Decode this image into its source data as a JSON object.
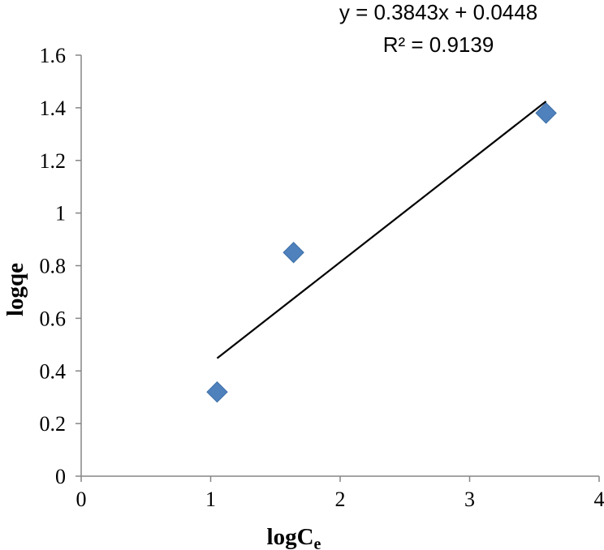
{
  "chart_data": {
    "type": "scatter",
    "xlabel": "logC",
    "xlabel_subscript": "e",
    "ylabel": "logqe",
    "xlim": [
      0,
      4
    ],
    "ylim": [
      0,
      1.6
    ],
    "x_ticks": [
      "0",
      "1",
      "2",
      "3",
      "4"
    ],
    "y_ticks": [
      "0",
      "0.2",
      "0.4",
      "0.6",
      "0.8",
      "1",
      "1.2",
      "1.4",
      "1.6"
    ],
    "grid": false,
    "marker_color": "#4F81BD",
    "trendline_color": "#000000",
    "series": [
      {
        "x": [
          1.05,
          1.64,
          3.59
        ],
        "y": [
          0.32,
          0.85,
          1.38
        ]
      }
    ],
    "trendline": {
      "slope": 0.3843,
      "intercept": 0.0448,
      "x_range": [
        1.05,
        3.59
      ],
      "equation": "y = 0.3843x + 0.0448",
      "r_squared": "R² = 0.9139"
    }
  }
}
